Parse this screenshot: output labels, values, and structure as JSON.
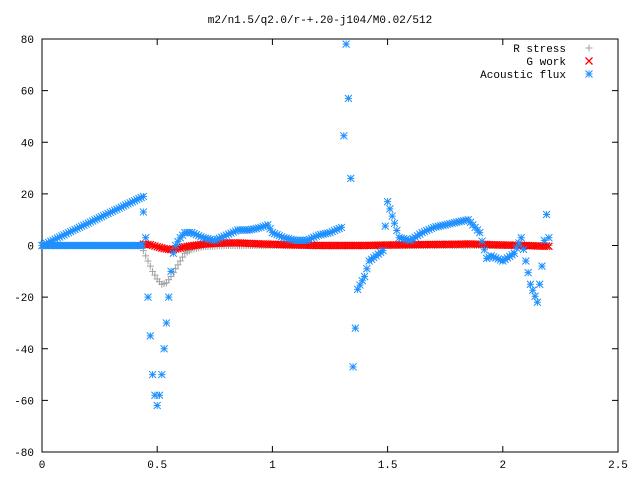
{
  "chart_data": {
    "type": "scatter",
    "title": "m2/n1.5/q2.0/r-+.20-j104/M0.02/512",
    "xlabel": "",
    "ylabel": "",
    "xlim": [
      0,
      2.5
    ],
    "ylim": [
      -80,
      80
    ],
    "xticks": [
      "0",
      "0.5",
      "1",
      "1.5",
      "2",
      "2.5"
    ],
    "yticks": [
      "-80",
      "-60",
      "-40",
      "-20",
      "0",
      "20",
      "40",
      "60",
      "80"
    ],
    "grid": false,
    "legend_position": "top-right",
    "series": [
      {
        "name": "R stress",
        "marker": "plus",
        "color": "#a0a0a0",
        "x": [
          0.44,
          0.46,
          0.48,
          0.5,
          0.52,
          0.54,
          0.56,
          0.58,
          0.6,
          0.62,
          0.65,
          0.7,
          0.8,
          1.0,
          1.2,
          1.5,
          1.8,
          2.0,
          2.2
        ],
        "y": [
          -2,
          -6,
          -10,
          -13,
          -15,
          -14.5,
          -12,
          -9,
          -6,
          -3,
          -1.5,
          -0.5,
          0,
          0,
          0,
          0,
          0,
          0,
          0
        ]
      },
      {
        "name": "G work",
        "marker": "cross",
        "color": "#ff0000",
        "x": [
          0.44,
          0.47,
          0.5,
          0.53,
          0.56,
          0.59,
          0.62,
          0.66,
          0.7,
          0.75,
          0.8,
          0.85,
          0.9,
          0.95,
          1.0,
          1.05,
          1.1,
          1.2,
          1.3,
          1.4,
          1.5,
          1.6,
          1.7,
          1.8,
          1.85,
          1.9,
          1.95,
          2.0,
          2.05,
          2.1,
          2.15,
          2.2
        ],
        "y": [
          0.5,
          0.3,
          -0.5,
          -1.2,
          -1.6,
          -1.2,
          -0.5,
          0,
          0.5,
          0.8,
          1,
          1,
          0.8,
          0.6,
          0.5,
          0.3,
          0.2,
          0,
          0,
          0,
          0.2,
          0.3,
          0.4,
          0.5,
          0.6,
          0.5,
          0.3,
          0.2,
          0.1,
          0,
          -0.2,
          -0.3
        ]
      },
      {
        "name": "Acoustic flux",
        "marker": "star",
        "color": "#1e90ff",
        "x": [
          0,
          0.44,
          0.44,
          0.45,
          0.46,
          0.47,
          0.48,
          0.49,
          0.5,
          0.51,
          0.52,
          0.53,
          0.54,
          0.55,
          0.56,
          0.57,
          0.58,
          0.6,
          0.62,
          0.65,
          0.7,
          0.75,
          0.8,
          0.85,
          0.9,
          0.95,
          0.98,
          1.0,
          1.05,
          1.1,
          1.15,
          1.2,
          1.25,
          1.3,
          1.32,
          1.33,
          1.34,
          1.35,
          1.37,
          1.4,
          1.42,
          1.45,
          1.48,
          1.5,
          1.55,
          1.6,
          1.65,
          1.7,
          1.75,
          1.8,
          1.85,
          1.9,
          1.93,
          1.95,
          2.0,
          2.05,
          2.08,
          2.12,
          2.15,
          2.17,
          2.19,
          2.2
        ],
        "y": [
          0,
          19,
          13,
          3,
          -20,
          -35,
          -50,
          -58,
          -62,
          -58,
          -50,
          -40,
          -30,
          -20,
          -10,
          -3,
          0,
          3,
          5,
          5,
          3,
          2,
          4,
          6,
          6,
          7,
          8,
          5,
          3,
          2,
          2,
          4,
          5,
          7,
          78,
          57,
          26,
          -47,
          -17,
          -12,
          -6,
          -4,
          -2,
          17,
          3,
          2,
          5,
          7,
          8,
          9,
          10,
          5,
          -5,
          -4,
          -6,
          -3,
          3,
          -15,
          -22,
          -8,
          12,
          3
        ]
      }
    ]
  }
}
